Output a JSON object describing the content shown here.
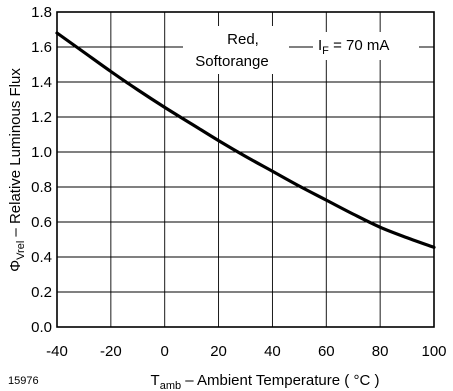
{
  "figure_number": "15976",
  "chart_data": {
    "type": "line",
    "xlabel": {
      "symbol": "T",
      "subscript": "amb",
      "text": " – Ambient Temperature ",
      "unit": "( °C )"
    },
    "ylabel": {
      "symbol": "Φ",
      "subscript": "Vrel",
      "text": " – Relative Luminous Flux"
    },
    "xlim": [
      -40,
      100
    ],
    "ylim": [
      0,
      1.8
    ],
    "x_ticks": [
      "-40",
      "-20",
      "0",
      "20",
      "40",
      "60",
      "80",
      "100"
    ],
    "x_tick_values": [
      -40,
      -20,
      0,
      20,
      40,
      60,
      80,
      100
    ],
    "y_ticks": [
      "0.0",
      "0.2",
      "0.4",
      "0.6",
      "0.8",
      "1.0",
      "1.2",
      "1.4",
      "1.6",
      "1.8"
    ],
    "y_tick_values": [
      0,
      0.2,
      0.4,
      0.6,
      0.8,
      1.0,
      1.2,
      1.4,
      1.6,
      1.8
    ],
    "grid": true,
    "series": [
      {
        "color": "#000000",
        "x": [
          -40,
          -30,
          -20,
          -10,
          0,
          10,
          20,
          30,
          40,
          50,
          60,
          70,
          80,
          90,
          100
        ],
        "y": [
          1.68,
          1.57,
          1.46,
          1.355,
          1.255,
          1.16,
          1.065,
          0.975,
          0.89,
          0.805,
          0.725,
          0.645,
          0.57,
          0.51,
          0.455
        ]
      }
    ],
    "annotations": {
      "series_label_line1": "Red,",
      "series_label_line2": "Softorange",
      "condition": {
        "symbol": "I",
        "subscript": "F",
        "text": " = 70 mA"
      }
    }
  }
}
